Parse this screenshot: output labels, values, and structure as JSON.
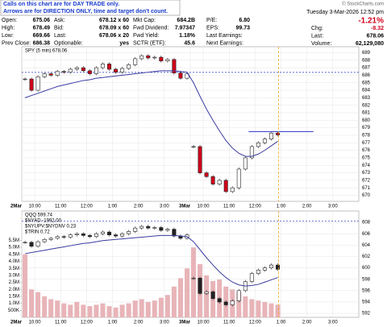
{
  "header": {
    "annotation": [
      "Calls on this chart are for DAY TRADE only.",
      "Arrows are for DIRECTION ONLY, time and target don't count."
    ],
    "copyright": "© StockCharts.com",
    "date": "Tuesday  3-Mar-2026  12:52 pm",
    "change_pct": "-1.21%",
    "columns": [
      [
        [
          "Open:",
          "675.06"
        ],
        [
          "High:",
          "678.49"
        ],
        [
          "Low:",
          "669.66"
        ],
        [
          "Prev Close:",
          "686.38"
        ]
      ],
      [
        [
          "Ask:",
          "678.12 x 60"
        ],
        [
          "Bid:",
          "678.09 x 60"
        ],
        [
          "Last:",
          "678.06 x 20"
        ],
        [
          "Optionable:",
          "yes"
        ]
      ],
      [
        [
          "Mkt Cap:",
          "684.2B"
        ],
        [
          "Fwd Dividend:",
          "7.97347"
        ],
        [
          "Fwd Yield:",
          "1.18%"
        ],
        [
          "SCTR (ETF):",
          "45.6"
        ]
      ],
      [
        [
          "P/E:",
          "6.80"
        ],
        [
          "EPS:",
          "99.73"
        ],
        [
          "Last Earnings:",
          ""
        ],
        [
          "Next Earnings:",
          ""
        ]
      ],
      [
        [
          "Chg:",
          "-8.32"
        ],
        [
          "Last:",
          "678.06"
        ],
        [
          "Volume:",
          "62,129,080"
        ]
      ]
    ]
  },
  "chart_data": [
    {
      "type": "combo",
      "legend": "SPY (5 min) 678.06",
      "ylim": [
        669.2,
        689.8
      ],
      "yticks": [
        670,
        671,
        672,
        673,
        674,
        675,
        676,
        677,
        678,
        679,
        680,
        681,
        682,
        683,
        684,
        685,
        686,
        687,
        688,
        689
      ],
      "xlim": [
        0,
        52
      ],
      "xticks": [
        {
          "value": 0,
          "label": "2Mar"
        },
        {
          "value": 2,
          "label": "10:00"
        },
        {
          "value": 6,
          "label": "11:00"
        },
        {
          "value": 10,
          "label": "12:00"
        },
        {
          "value": 14,
          "label": "1:00"
        },
        {
          "value": 18,
          "label": "2:00"
        },
        {
          "value": 22,
          "label": "3:00"
        },
        {
          "value": 26,
          "label": "3Mar"
        },
        {
          "value": 28,
          "label": "10:00"
        },
        {
          "value": 32,
          "label": "11:00"
        },
        {
          "value": 36,
          "label": "12:00"
        },
        {
          "value": 40,
          "label": "1:00"
        },
        {
          "value": 44,
          "label": "2:00"
        },
        {
          "value": 48,
          "label": "3:00"
        }
      ],
      "hline": 686.38,
      "resistance": 678.5,
      "series": [
        {
          "type": "candle",
          "color": "#d0021b",
          "values": [
            685.5,
            684,
            685.8,
            686.2,
            686,
            686.5,
            686.4,
            686.8,
            687,
            686.6,
            686.2,
            687,
            687.5,
            686.8,
            686.4,
            686.9,
            687.4,
            688.2,
            688.6,
            688.3,
            688.4,
            687.9,
            688.1,
            686.3,
            685.6,
            686.2,
            676.5,
            673,
            672.5,
            671.5,
            672,
            670.5,
            671,
            673.5,
            675,
            676.5,
            677,
            677.5,
            678.3,
            678.06
          ]
        },
        {
          "type": "line",
          "color": "#3a3aa0",
          "values": [
            683,
            683.3,
            683.6,
            683.9,
            684.2,
            684.5,
            684.7,
            684.9,
            685.1,
            685.3,
            685.4,
            685.6,
            685.7,
            685.8,
            685.9,
            686,
            686.1,
            686.2,
            686.3,
            686.4,
            686.5,
            686.6,
            686.6,
            686.6,
            686.5,
            686.4,
            685,
            683.2,
            681.5,
            680,
            678.6,
            677.3,
            676.3,
            675.6,
            675.2,
            675.2,
            675.5,
            676,
            676.6,
            677.2
          ]
        }
      ]
    },
    {
      "type": "combo",
      "legend": "QQQ 599.74",
      "legend_extra": [
        "$NYAD -1992.00",
        "$NYUPV:$NYDNV 0.23",
        "$TRIN 0.72"
      ],
      "ylim": [
        591.3,
        610
      ],
      "yticks": [
        592,
        594,
        596,
        598,
        600,
        602,
        604,
        606,
        608
      ],
      "y2lim": [
        0,
        7600000
      ],
      "y2ticks": [
        {
          "value": 500000,
          "label": "500K"
        },
        {
          "value": 1000000,
          "label": "1.0M"
        },
        {
          "value": 1500000,
          "label": "1.5M"
        },
        {
          "value": 2000000,
          "label": "2.0M"
        },
        {
          "value": 2500000,
          "label": "2.5M"
        },
        {
          "value": 3000000,
          "label": "3.0M"
        },
        {
          "value": 3500000,
          "label": "3.5M"
        },
        {
          "value": 4000000,
          "label": "4.0M"
        },
        {
          "value": 4500000,
          "label": "4.5M"
        },
        {
          "value": 5000000,
          "label": "5.0M"
        },
        {
          "value": 5500000,
          "label": "5.5M"
        }
      ],
      "xlim": [
        0,
        52
      ],
      "xticks": [
        {
          "value": 0,
          "label": "2Mar"
        },
        {
          "value": 2,
          "label": "10:00"
        },
        {
          "value": 6,
          "label": "11:00"
        },
        {
          "value": 10,
          "label": "12:00"
        },
        {
          "value": 14,
          "label": "1:00"
        },
        {
          "value": 18,
          "label": "2:00"
        },
        {
          "value": 22,
          "label": "3:00"
        },
        {
          "value": 26,
          "label": "3Mar"
        },
        {
          "value": 28,
          "label": "10:00"
        },
        {
          "value": 32,
          "label": "11:00"
        },
        {
          "value": 36,
          "label": "12:00"
        },
        {
          "value": 40,
          "label": "1:00"
        },
        {
          "value": 44,
          "label": "2:00"
        },
        {
          "value": 48,
          "label": "3:00"
        }
      ],
      "hline": 608.2,
      "series": [
        {
          "type": "bar",
          "axis": "y2",
          "color": "#e8b4b8",
          "values": [
            4500000,
            2000000,
            1800000,
            1500000,
            1300000,
            1200000,
            1000000,
            900000,
            1100000,
            900000,
            800000,
            900000,
            1000000,
            800000,
            700000,
            900000,
            1000000,
            1200000,
            1300000,
            1100000,
            1200000,
            1400000,
            1600000,
            2200000,
            2800000,
            3500000,
            5000000,
            3800000,
            3000000,
            2600000,
            2700000,
            2200000,
            2000000,
            1800000,
            1500000,
            1300000,
            1200000,
            1100000,
            1000000,
            900000
          ]
        },
        {
          "type": "candle",
          "color": "#222222",
          "values": [
            604.5,
            603.8,
            604.6,
            605,
            605.2,
            605.5,
            605.4,
            605.8,
            606,
            605.7,
            605.5,
            606,
            606.3,
            605.8,
            605.6,
            606,
            606.4,
            607,
            607.3,
            607,
            607.1,
            606.6,
            606.8,
            605.6,
            605.2,
            605.8,
            598.2,
            595.5,
            595.8,
            594.6,
            594,
            593.5,
            594.2,
            596,
            597.6,
            599,
            599.6,
            600,
            600.5,
            599.74
          ]
        },
        {
          "type": "line",
          "color": "#3a3aa0",
          "values": [
            602.5,
            602.7,
            602.9,
            603.1,
            603.3,
            603.5,
            603.7,
            603.9,
            604.1,
            604.3,
            604.4,
            604.6,
            604.8,
            604.9,
            605,
            605.1,
            605.2,
            605.3,
            605.4,
            605.5,
            605.6,
            605.7,
            605.7,
            605.7,
            605.6,
            605.5,
            604.6,
            603.2,
            601.8,
            600.5,
            599.3,
            598.3,
            597.5,
            597,
            596.8,
            596.9,
            597.1,
            597.5,
            597.9,
            598.3
          ]
        }
      ]
    }
  ]
}
